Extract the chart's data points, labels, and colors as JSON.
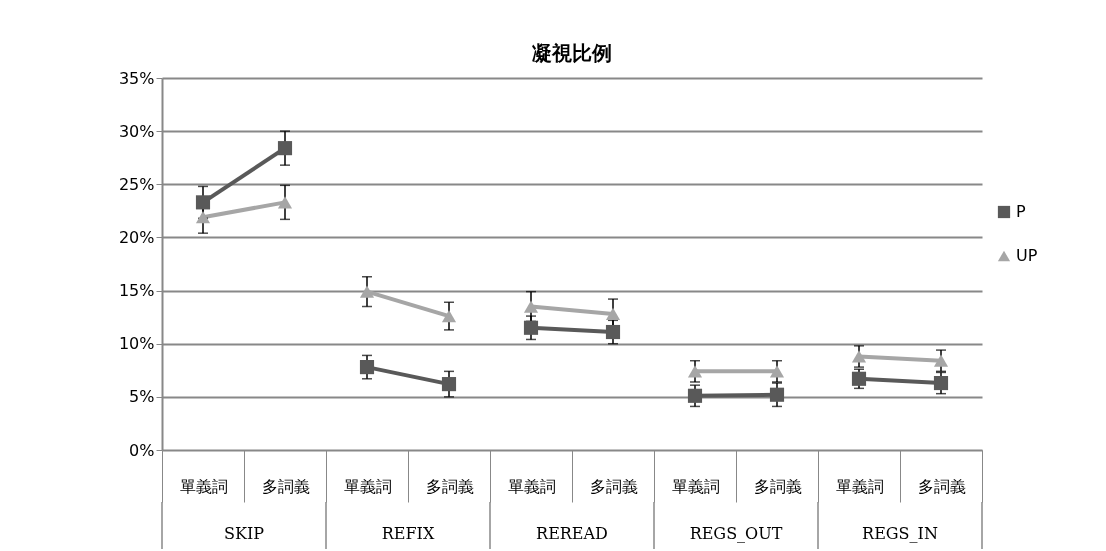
{
  "chart_data": {
    "type": "line",
    "title": "凝視比例",
    "categories": [
      "單義詞",
      "多詞義",
      "單義詞",
      "多詞義",
      "單義詞",
      "多詞義",
      "單義詞",
      "多詞義",
      "單義詞",
      "多詞義"
    ],
    "annotations": [
      "SKIP",
      "REFIX",
      "REREAD",
      "REGS_OUT",
      "REGS_IN"
    ],
    "ylim": [
      0,
      35
    ],
    "yticks": [
      {
        "value": 0,
        "label": "0%"
      },
      {
        "value": 5,
        "label": "5%"
      },
      {
        "value": 10,
        "label": "10%"
      },
      {
        "value": 15,
        "label": "15%"
      },
      {
        "value": 20,
        "label": "20%"
      },
      {
        "value": 25,
        "label": "25%"
      },
      {
        "value": 30,
        "label": "30%"
      },
      {
        "value": 35,
        "label": "35%"
      }
    ],
    "grid": "y",
    "legend": "right",
    "series": [
      {
        "name": "P",
        "color": "#595959",
        "marker": "square",
        "values": [
          23.3,
          28.4,
          7.8,
          6.2,
          11.5,
          11.1,
          5.1,
          5.2,
          6.7,
          6.3
        ],
        "errors": [
          1.5,
          1.6,
          1.1,
          1.2,
          1.1,
          1.1,
          1.0,
          1.1,
          0.9,
          1.0
        ]
      },
      {
        "name": "UP",
        "color": "#a6a6a6",
        "marker": "triangle",
        "values": [
          21.9,
          23.3,
          14.9,
          12.6,
          13.5,
          12.8,
          7.4,
          7.4,
          8.8,
          8.4
        ],
        "errors": [
          1.5,
          1.6,
          1.4,
          1.3,
          1.4,
          1.4,
          1.0,
          1.0,
          1.0,
          1.0
        ]
      }
    ]
  }
}
